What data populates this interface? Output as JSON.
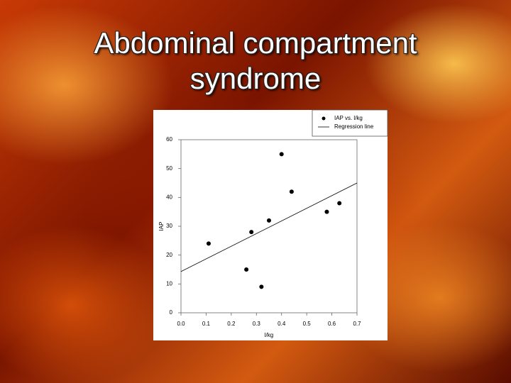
{
  "chart_data": {
    "type": "scatter",
    "title": "Abdominal compartment syndrome",
    "x_label": "l/kg",
    "y_label": "IAP",
    "xlim": [
      0,
      0.7
    ],
    "ylim": [
      0,
      60
    ],
    "xticks": [
      {
        "value": 0,
        "label": "0.0"
      },
      0.1,
      0.2,
      0.3,
      0.4,
      0.5,
      0.6,
      0.7
    ],
    "yticks": [
      0,
      10,
      20,
      30,
      40,
      50,
      60
    ],
    "legend": "top-right",
    "series": [
      {
        "name": "IAP vs. l/kg",
        "type": "scatter",
        "color": "#000000",
        "x": [
          0.11,
          0.26,
          0.28,
          0.32,
          0.35,
          0.4,
          0.44,
          0.58,
          0.63
        ],
        "values": [
          24,
          15,
          28,
          9,
          32,
          55,
          42,
          35,
          38
        ]
      },
      {
        "name": "Regression line",
        "type": "line",
        "color": "#000000",
        "x": [
          0,
          0.7
        ],
        "values": [
          14.3,
          45
        ]
      }
    ]
  }
}
